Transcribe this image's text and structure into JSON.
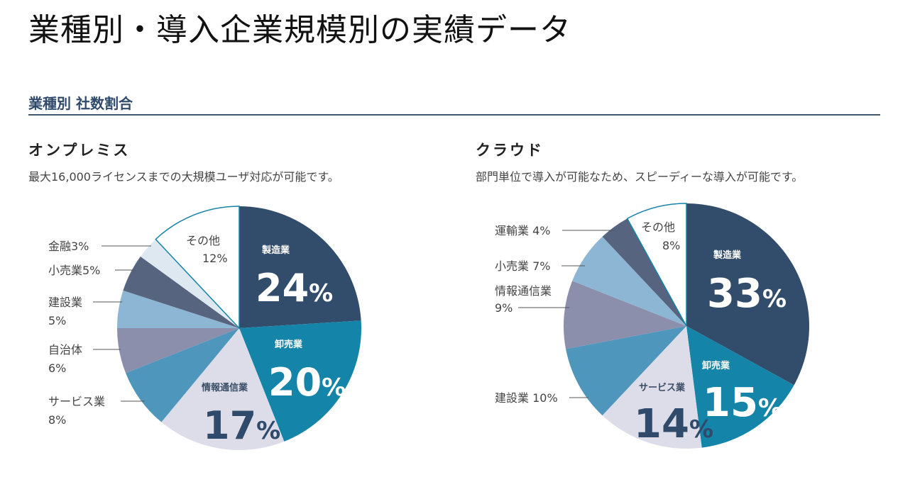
{
  "page": {
    "title": "業種別・導入企業規模別の実績データ",
    "section_heading": "業種別 社数割合"
  },
  "onprem": {
    "heading": "オンプレミス",
    "description": "最大16,000ライセンスまでの大規模ユーザ対応が可能です。"
  },
  "cloud": {
    "heading": "クラウド",
    "description": "部門単位で導入が可能なため、スピーディーな導入が可能です。"
  },
  "colors": {
    "manufacturing": "#324d6b",
    "wholesale": "#1484a8",
    "pale_lavender": "#dcdde8",
    "steel_blue": "#4f96bd",
    "gray_purple": "#8b8fab",
    "light_blue": "#8db6d4",
    "slate": "#56647f",
    "very_light": "#dde8f0",
    "other": "#ffffff",
    "section_text": "#2f4a6a"
  },
  "chart_data": [
    {
      "type": "pie",
      "title": "オンプレミス",
      "categories": [
        "製造業",
        "卸売業",
        "情報通信業",
        "サービス業",
        "自治体",
        "建設業",
        "小売業",
        "金融",
        "その他"
      ],
      "values": [
        24,
        20,
        17,
        8,
        6,
        5,
        5,
        3,
        12
      ],
      "unit": "%",
      "start_angle": "12 o'clock, clockwise"
    },
    {
      "type": "pie",
      "title": "クラウド",
      "categories": [
        "製造業",
        "卸売業",
        "サービス業",
        "建設業",
        "情報通信業",
        "小売業",
        "運輸業",
        "その他"
      ],
      "values": [
        33,
        15,
        14,
        10,
        9,
        7,
        4,
        8
      ],
      "unit": "%",
      "start_angle": "12 o'clock, clockwise"
    }
  ],
  "labels": {
    "onprem": {
      "manufacturing_name": "製造業",
      "manufacturing_pct": "24",
      "wholesale_name": "卸売業",
      "wholesale_pct": "20",
      "ict_name": "情報通信業",
      "ict_pct": "17",
      "other_name": "その他",
      "other_pct": "12%",
      "finance": "金融3%",
      "retail": "小売業5%",
      "construction_name": "建設業",
      "construction_pct": "5%",
      "municipal_name": "自治体",
      "municipal_pct": "6%",
      "service_name": "サービス業",
      "service_pct": "8%"
    },
    "cloud": {
      "manufacturing_name": "製造業",
      "manufacturing_pct": "33",
      "wholesale_name": "卸売業",
      "wholesale_pct": "15",
      "service_name": "サービス業",
      "service_pct": "14",
      "other_name": "その他",
      "other_pct": "8%",
      "transport": "運輸業 4%",
      "retail": "小売業 7%",
      "ict_name": "情報通信業",
      "ict_pct": "9%",
      "construction": "建設業 10%"
    },
    "percent_sign": "%"
  }
}
